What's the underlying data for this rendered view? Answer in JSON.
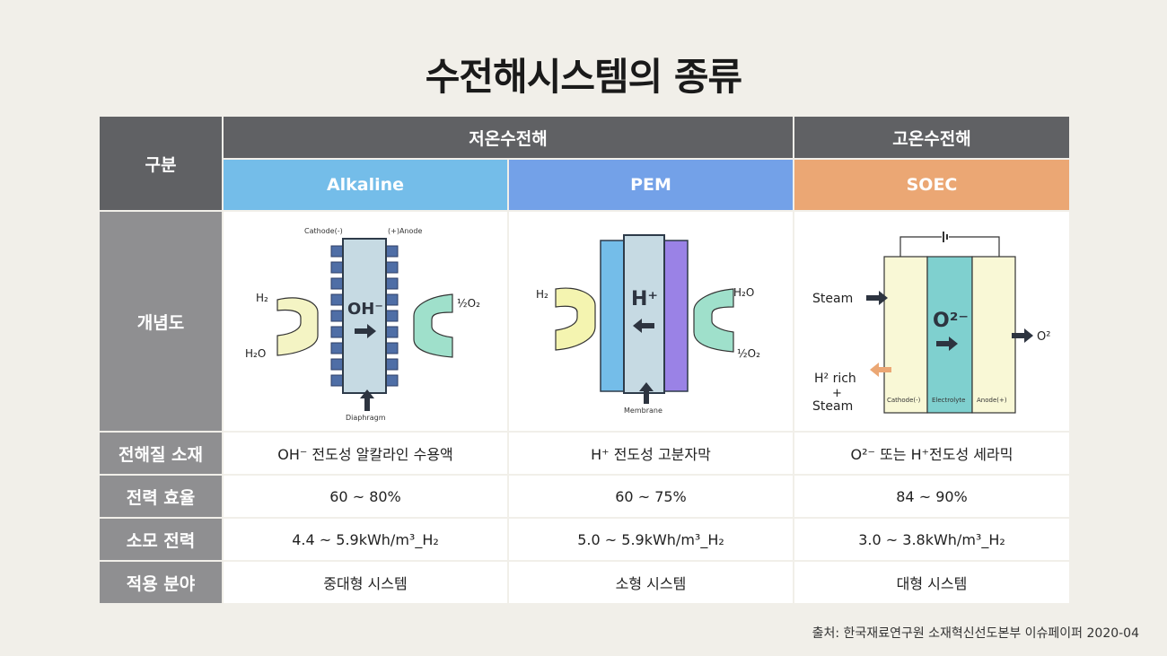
{
  "title": "수전해시스템의 종류",
  "header": {
    "category": "구분",
    "low_temp": "저온수전해",
    "high_temp": "고온수전해",
    "alkaline": "Alkaline",
    "pem": "PEM",
    "soec": "SOEC"
  },
  "row_labels": {
    "concept": "개념도",
    "electrolyte": "전해질 소재",
    "efficiency": "전력 효율",
    "consumption": "소모 전력",
    "application": "적용 분야"
  },
  "rows": {
    "electrolyte": [
      "OH⁻ 전도성 알칼라인 수용액",
      "H⁺ 전도성 고분자막",
      "O²⁻ 또는 H⁺전도성 세라믹"
    ],
    "efficiency": [
      "60 ~ 80%",
      "60 ~ 75%",
      "84 ~ 90%"
    ],
    "consumption": [
      "4.4 ~ 5.9kWh/m³_H₂",
      "5.0 ~ 5.9kWh/m³_H₂",
      "3.0 ~ 3.8kWh/m³_H₂"
    ],
    "application": [
      "중대형 시스템",
      "소형 시스템",
      "대형 시스템"
    ]
  },
  "diagrams": {
    "alkaline": {
      "cathode": "Cathode(-)",
      "anode": "(+)Anode",
      "ion": "OH⁻",
      "h2": "H₂",
      "h2o": "H₂O",
      "o2": "½O₂",
      "diaphragm": "Diaphragm"
    },
    "pem": {
      "ion": "H⁺",
      "h2": "H₂",
      "h2o": "H₂O",
      "o2": "½O₂",
      "membrane": "Membrane"
    },
    "soec": {
      "steam": "Steam",
      "ion": "O²⁻",
      "o2": "O²",
      "h2_rich": "H² rich",
      "plus": "+",
      "steam2": "Steam",
      "cathode": "Cathode(-)",
      "electrolyte": "Electrolyte",
      "anode": "Anode(+)"
    }
  },
  "colors": {
    "header_dark": "#606164",
    "row_label": "#8f8f91",
    "alkaline": "#74bde9",
    "pem": "#73a1e8",
    "soec": "#eba774"
  },
  "source": "출처: 한국재료연구원 소재혁신선도본부 이슈페이퍼 2020-04"
}
